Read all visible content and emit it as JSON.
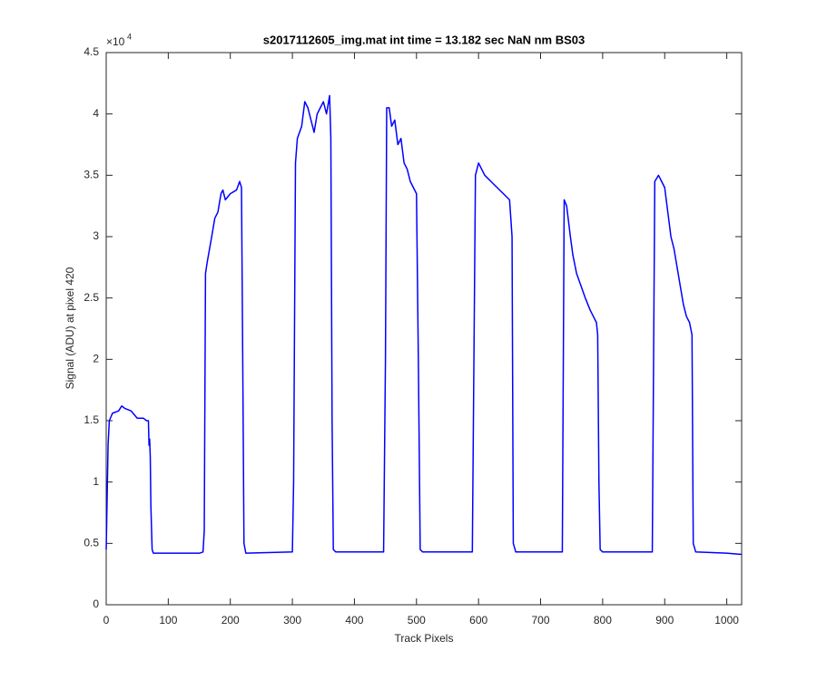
{
  "chart_data": {
    "type": "line",
    "title": "s2017112605_img.mat int time = 13.182 sec  NaN nm BS03",
    "x_label": "Track Pixels",
    "y_label": "Signal (ADU) at pixel 420",
    "y_multiplier": "×10",
    "y_multiplier_exponent": "4",
    "xlim": [
      0,
      1024
    ],
    "ylim": [
      0,
      4.5
    ],
    "xticks": [
      0,
      100,
      200,
      300,
      400,
      500,
      600,
      700,
      800,
      900,
      1000
    ],
    "yticks": [
      0,
      0.5,
      1,
      1.5,
      2,
      2.5,
      3,
      3.5,
      4,
      4.5
    ],
    "grid": false,
    "series": [
      {
        "color": "#0000ff",
        "x": [
          0,
          3,
          5,
          10,
          20,
          25,
          30,
          40,
          50,
          60,
          65,
          68,
          69,
          70,
          71,
          72,
          74,
          76,
          100,
          150,
          156,
          158,
          160,
          163,
          170,
          175,
          180,
          185,
          188,
          192,
          200,
          210,
          215,
          218,
          220,
          222,
          225,
          300,
          302,
          305,
          308,
          315,
          320,
          325,
          330,
          335,
          340,
          345,
          350,
          355,
          360,
          362,
          364,
          366,
          370,
          447,
          450,
          452,
          456,
          460,
          465,
          470,
          475,
          480,
          485,
          490,
          495,
          500,
          503,
          506,
          510,
          590,
          595,
          600,
          605,
          610,
          620,
          630,
          640,
          650,
          654,
          656,
          660,
          735,
          738,
          742,
          748,
          752,
          758,
          765,
          772,
          780,
          785,
          790,
          792,
          794,
          796,
          800,
          880,
          884,
          890,
          895,
          900,
          905,
          910,
          915,
          920,
          925,
          930,
          935,
          940,
          944,
          946,
          950,
          1000,
          1024
        ],
        "values": [
          0.45,
          1.3,
          1.5,
          1.56,
          1.58,
          1.62,
          1.6,
          1.58,
          1.52,
          1.52,
          1.5,
          1.5,
          1.3,
          1.35,
          1.2,
          0.8,
          0.45,
          0.42,
          0.42,
          0.42,
          0.43,
          0.6,
          2.7,
          2.8,
          3.0,
          3.15,
          3.2,
          3.35,
          3.38,
          3.3,
          3.35,
          3.38,
          3.45,
          3.4,
          2.0,
          0.5,
          0.42,
          0.43,
          1.0,
          3.6,
          3.8,
          3.9,
          4.1,
          4.05,
          3.95,
          3.85,
          4.0,
          4.05,
          4.1,
          4.0,
          4.15,
          3.8,
          1.5,
          0.45,
          0.43,
          0.43,
          2.0,
          4.05,
          4.05,
          3.9,
          3.95,
          3.75,
          3.8,
          3.6,
          3.55,
          3.45,
          3.4,
          3.35,
          2.0,
          0.45,
          0.43,
          0.43,
          3.5,
          3.6,
          3.55,
          3.5,
          3.45,
          3.4,
          3.35,
          3.3,
          3.0,
          0.5,
          0.43,
          0.43,
          3.3,
          3.25,
          3.0,
          2.85,
          2.7,
          2.6,
          2.5,
          2.4,
          2.35,
          2.3,
          2.2,
          1.0,
          0.45,
          0.43,
          0.43,
          3.45,
          3.5,
          3.45,
          3.4,
          3.2,
          3.0,
          2.9,
          2.75,
          2.6,
          2.45,
          2.35,
          2.3,
          2.2,
          0.5,
          0.43,
          0.42,
          0.41
        ]
      }
    ]
  }
}
